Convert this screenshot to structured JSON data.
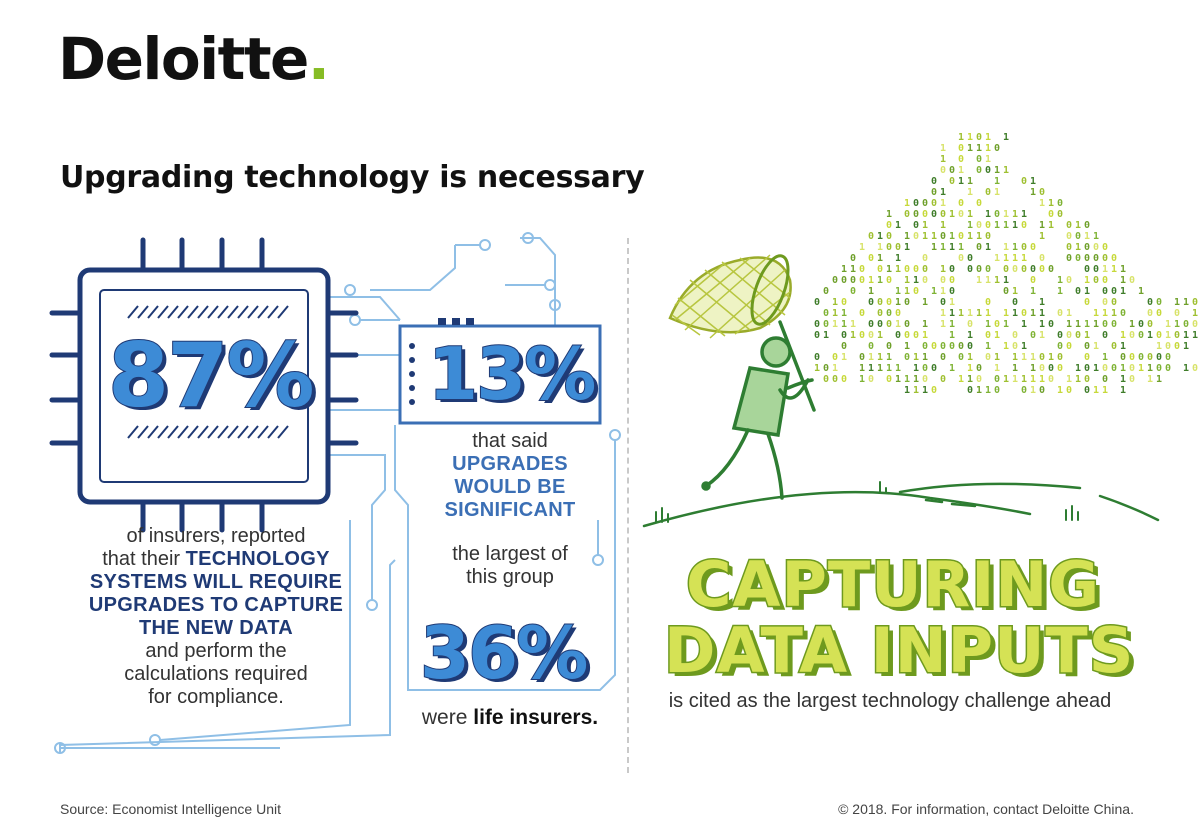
{
  "header": {
    "logo_text": "Deloitte",
    "logo_dot": ".",
    "headline": "Upgrading technology is necessary"
  },
  "left_panel": {
    "stat_87": "87%",
    "desc_87": {
      "line1": "of insurers, reported",
      "line2_plain": "that their ",
      "line2_bold": "TECHNOLOGY",
      "line3_bold": "SYSTEMS WILL REQUIRE",
      "line4_bold": "UPGRADES TO CAPTURE",
      "line5_bold": "THE NEW DATA",
      "line6": "and perform the",
      "line7": "calculations required",
      "line8": "for compliance."
    }
  },
  "middle_panel": {
    "stat_13": "13%",
    "desc_13": {
      "line1": "that said",
      "line2_bold": "UPGRADES",
      "line3_bold": "WOULD BE",
      "line4_bold": "SIGNIFICANT"
    },
    "largest": {
      "line1": "the largest of",
      "line2": "this group"
    },
    "stat_36": "36%",
    "desc_36": {
      "plain": "were ",
      "bold": "life insurers."
    }
  },
  "right_panel": {
    "capture_line1": "CAPTURING",
    "capture_line2": "DATA INPUTS",
    "capture_sub": "is cited as the largest technology challenge ahead"
  },
  "footer": {
    "source": "Source: Economist Intelligence Unit",
    "copyright": "© 2018. For information, contact Deloitte China."
  },
  "colors": {
    "navy": "#1f3a75",
    "blue": "#3d8bd6",
    "light_blue": "#8fbfe6",
    "green": "#86bc25",
    "lime": "#d5e255",
    "dark_green": "#2e7d32"
  },
  "icons": [
    "circuit-chip-icon",
    "circuit-traces-icon",
    "butterfly-net-icon",
    "stick-figure-icon",
    "binary-data-cloud-icon",
    "grass-hill-icon"
  ]
}
